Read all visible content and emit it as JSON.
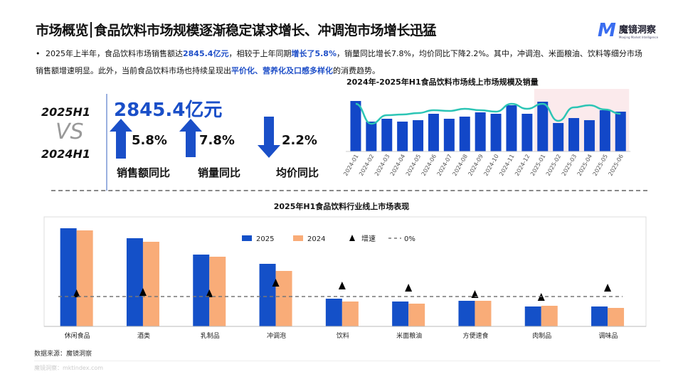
{
  "header": {
    "title_left": "市场概览",
    "title_right": "食品饮料市场规模逐渐稳定谋求增长、冲调泡市场增长迅猛",
    "logo_text": "魔镜洞察",
    "logo_sub": "Moojing Market Intelligence"
  },
  "summary": {
    "p1": "2025年上半年，食品饮料市场销售额达",
    "h1": "2845.4亿元",
    "p2": "，相较于上年同期",
    "h2": "增长了5.8%",
    "p3": "，销量同比增长7.8%，均价同比下降2.2%。其中，冲调泡、米面粮油、饮料等细分市场销售额增速明显。此外，当前食品饮料市场也持续呈现出",
    "h3": "平价化、营养化及口感多样化",
    "p4": "的消费趋势。"
  },
  "kpi": {
    "period_a": "2025H1",
    "vs": "VS",
    "period_b": "2024H1",
    "total": "2845.4亿元",
    "items": [
      {
        "value": "5.8%",
        "label": "销售额同比",
        "direction": "up"
      },
      {
        "value": "7.8%",
        "label": "销量同比",
        "direction": "up"
      },
      {
        "value": "2.2%",
        "label": "均价同比",
        "direction": "down"
      }
    ],
    "accent": "#1a4fc8"
  },
  "chart_data": [
    {
      "type": "bar+line",
      "title": "2024年-2025年H1食品饮料市场线上市场规模及销量",
      "categories": [
        "2024-01",
        "2024-02",
        "2024-03",
        "2024-04",
        "2024-05",
        "2024-06",
        "2024-07",
        "2024-08",
        "2024-09",
        "2024-10",
        "2024-11",
        "2024-12",
        "2025-01",
        "2025-02",
        "2025-03",
        "2025-04",
        "2025-05",
        "2025-06"
      ],
      "bar_values": [
        71,
        42,
        46,
        42,
        44,
        53,
        46,
        49,
        55,
        53,
        65,
        53,
        70,
        40,
        47,
        44,
        58,
        56
      ],
      "line_values": [
        67,
        39,
        51,
        52,
        54,
        58,
        57,
        60,
        58,
        56,
        67,
        60,
        67,
        43,
        62,
        65,
        59,
        53
      ],
      "highlight": [
        "2025-01",
        "2025-06"
      ],
      "bar_color": "#1247c8",
      "line_color": "#2cc5b5",
      "highlight_color": "#fbeaec",
      "axis_values_shown": false
    },
    {
      "type": "bar",
      "title": "2025年H1食品饮料行业线上市场表现",
      "categories": [
        "休闲食品",
        "酒类",
        "乳制品",
        "冲调泡",
        "饮料",
        "米面粮油",
        "方便速食",
        "肉制品",
        "调味品"
      ],
      "series": [
        {
          "name": "2025",
          "values": [
            138,
            124,
            101,
            88,
            39,
            35,
            36,
            28,
            28
          ],
          "color": "#1450c8"
        },
        {
          "name": "2024",
          "values": [
            135,
            119,
            98,
            78,
            35,
            32,
            36,
            29,
            26
          ],
          "color": "#f9ac78"
        },
        {
          "name": "增速",
          "type": "marker",
          "values": [
            4,
            6,
            4,
            19,
            15,
            12,
            3,
            -1,
            12
          ],
          "color": "#000"
        }
      ],
      "reference_line": {
        "name": "0%",
        "value": 0
      },
      "legend": "top-center",
      "axis_values_shown": false
    }
  ],
  "footer": {
    "source": "数据来源：魔镜洞察",
    "watermark": "魔镜洞察：mktindex.com"
  }
}
